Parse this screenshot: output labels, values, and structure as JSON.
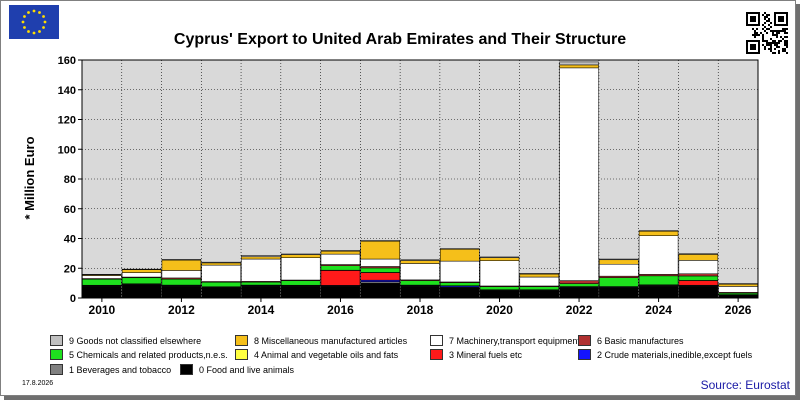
{
  "header": {
    "title": "Cyprus' Export to United Arab Emirates and Their Structure",
    "flag_icon": "eu-flag-icon",
    "qr_icon": "qr-code-icon"
  },
  "footer": {
    "date": "17.8.2026",
    "source": "Source: Eurostat"
  },
  "colors": {
    "plot_bg": "#d9d9d9",
    "grid": "#000000"
  },
  "legend": [
    {
      "label": "9 Goods not classified elsewhere",
      "color": "#c0c0c0"
    },
    {
      "label": "8 Miscellaneous manufactured articles",
      "color": "#f5bf1a"
    },
    {
      "label": "7 Machinery,transport equipment",
      "color": "#ffffff"
    },
    {
      "label": "6 Basic manufactures",
      "color": "#b03030"
    },
    {
      "label": "5 Chemicals and related products,n.e.s.",
      "color": "#1ee01e"
    },
    {
      "label": "4 Animal and vegetable oils and fats",
      "color": "#ffff40"
    },
    {
      "label": "3 Mineral fuels etc",
      "color": "#ff1a1a"
    },
    {
      "label": "2 Crude materials,inedible,except fuels",
      "color": "#1414ff"
    },
    {
      "label": "1 Beverages and tobacco",
      "color": "#808080"
    },
    {
      "label": "0 Food and live animals",
      "color": "#000000"
    }
  ],
  "chart_data": {
    "type": "bar",
    "stacked": true,
    "title": "Cyprus' Export to United Arab Emirates and Their Structure",
    "ylabel": "* Million Euro",
    "xlabel": "",
    "ylim": [
      0,
      160
    ],
    "yticks": [
      0,
      20,
      40,
      60,
      80,
      100,
      120,
      140,
      160
    ],
    "xtick_labels": [
      "2010",
      "2012",
      "2014",
      "2016",
      "2018",
      "2020",
      "2022",
      "2024",
      "2026"
    ],
    "grid": true,
    "categories": [
      "2010",
      "2011",
      "2012",
      "2013",
      "2014",
      "2015",
      "2016",
      "2017",
      "2018",
      "2019",
      "2020",
      "2021",
      "2022",
      "2023",
      "2024",
      "2025",
      "2026"
    ],
    "series": [
      {
        "name": "0 Food and live animals",
        "color": "#000000",
        "values": [
          8,
          9,
          8,
          7,
          8,
          8,
          8,
          10,
          8,
          7,
          5,
          5,
          7,
          7,
          8,
          8,
          2
        ]
      },
      {
        "name": "1 Beverages and tobacco",
        "color": "#808080",
        "values": [
          0.2,
          0.2,
          0.3,
          0.2,
          0.3,
          0.2,
          0.3,
          1,
          0.3,
          0.3,
          0.2,
          0.2,
          0.3,
          0.3,
          0.4,
          0.4,
          0.1
        ]
      },
      {
        "name": "2 Crude materials,inedible,except fuels",
        "color": "#1414ff",
        "values": [
          0.2,
          0.2,
          0.2,
          0.2,
          0.2,
          0.2,
          0.2,
          1,
          0.2,
          0.8,
          0.2,
          0.2,
          0.2,
          0.2,
          0.3,
          0.2,
          0.1
        ]
      },
      {
        "name": "3 Mineral fuels etc",
        "color": "#ff1a1a",
        "values": [
          0,
          0,
          0,
          0,
          0,
          0,
          10,
          5,
          0,
          0,
          0,
          0,
          0,
          0,
          0,
          3,
          0
        ]
      },
      {
        "name": "4 Animal and vegetable oils and fats",
        "color": "#ffff40",
        "values": [
          0.2,
          0.2,
          0.2,
          0.2,
          0.2,
          0.2,
          0.2,
          0.2,
          0.2,
          0.2,
          0.2,
          0.2,
          0.2,
          0.2,
          0.2,
          0.2,
          0.1
        ]
      },
      {
        "name": "5 Chemicals and related products,n.e.s.",
        "color": "#1ee01e",
        "values": [
          4,
          4,
          4,
          3,
          2,
          3,
          3,
          3,
          3,
          2,
          2,
          2,
          2,
          6,
          6,
          3,
          1
        ]
      },
      {
        "name": "6 Basic manufactures",
        "color": "#b03030",
        "values": [
          0.5,
          0.5,
          0.8,
          0.5,
          0.5,
          0.5,
          0.8,
          1,
          0.5,
          0.5,
          0.5,
          0.5,
          2,
          1,
          1,
          1.5,
          0.5
        ]
      },
      {
        "name": "7 Machinery,transport equipment",
        "color": "#ffffff",
        "values": [
          2,
          3,
          5,
          11,
          15,
          15,
          7,
          5,
          11,
          14,
          17,
          6,
          143,
          8,
          26,
          9,
          4
        ]
      },
      {
        "name": "8 Miscellaneous manufactured articles",
        "color": "#f5bf1a",
        "values": [
          0.5,
          2,
          7,
          1.5,
          1.5,
          2,
          2,
          12,
          2,
          8,
          2,
          2,
          2,
          3,
          3,
          4,
          1.5
        ]
      },
      {
        "name": "9 Goods not classified elsewhere",
        "color": "#c0c0c0",
        "values": [
          0.3,
          0.3,
          0.5,
          0.5,
          1,
          0.5,
          0.5,
          0.5,
          0.5,
          0.5,
          0.5,
          0.5,
          2,
          0.5,
          0.5,
          0.5,
          0.5
        ]
      }
    ]
  }
}
